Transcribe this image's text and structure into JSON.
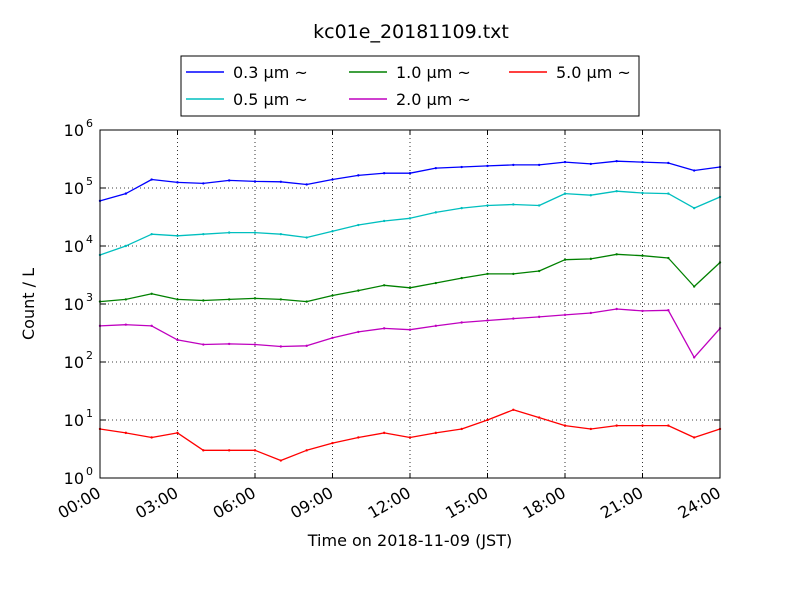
{
  "chart_data": {
    "type": "line",
    "title": "kc01e_20181109.txt",
    "xlabel": "Time on 2018-11-09 (JST)",
    "ylabel": "Count / L",
    "yscale": "log",
    "ylim": [
      1,
      1000000
    ],
    "xlim": [
      "00:00",
      "24:00"
    ],
    "grid": true,
    "legend": "top-center",
    "x_ticks": [
      "00:00",
      "03:00",
      "06:00",
      "09:00",
      "12:00",
      "15:00",
      "18:00",
      "21:00",
      "24:00"
    ],
    "y_ticks": [
      {
        "base": "10",
        "exp": "0"
      },
      {
        "base": "10",
        "exp": "1"
      },
      {
        "base": "10",
        "exp": "2"
      },
      {
        "base": "10",
        "exp": "3"
      },
      {
        "base": "10",
        "exp": "4"
      },
      {
        "base": "10",
        "exp": "5"
      },
      {
        "base": "10",
        "exp": "6"
      }
    ],
    "x": [
      "00:00",
      "01:00",
      "02:00",
      "03:00",
      "04:00",
      "05:00",
      "06:00",
      "07:00",
      "08:00",
      "09:00",
      "10:00",
      "11:00",
      "12:00",
      "13:00",
      "14:00",
      "15:00",
      "16:00",
      "17:00",
      "18:00",
      "19:00",
      "20:00",
      "21:00",
      "22:00",
      "23:00",
      "24:00"
    ],
    "series": [
      {
        "name": "0.3 μm ~",
        "color": "#0000ff",
        "values": [
          60000,
          80000,
          140000,
          125000,
          120000,
          135000,
          130000,
          128000,
          115000,
          140000,
          165000,
          180000,
          180000,
          220000,
          230000,
          240000,
          250000,
          250000,
          280000,
          260000,
          290000,
          280000,
          270000,
          200000,
          230000
        ]
      },
      {
        "name": "0.5 μm ~",
        "color": "#00bfbf",
        "values": [
          7000,
          10000,
          16000,
          15000,
          16000,
          17000,
          17000,
          16000,
          14000,
          18000,
          23000,
          27000,
          30000,
          38000,
          45000,
          50000,
          52000,
          50000,
          80000,
          75000,
          88000,
          82000,
          80000,
          45000,
          70000
        ]
      },
      {
        "name": "1.0 μm ~",
        "color": "#008000",
        "values": [
          1100,
          1200,
          1500,
          1200,
          1150,
          1200,
          1250,
          1200,
          1100,
          1400,
          1700,
          2100,
          1900,
          2300,
          2800,
          3300,
          3300,
          3700,
          5800,
          6000,
          7200,
          6800,
          6200,
          2000,
          5200
        ]
      },
      {
        "name": "2.0 μm ~",
        "color": "#bf00bf",
        "values": [
          420,
          440,
          420,
          240,
          200,
          205,
          200,
          185,
          190,
          260,
          330,
          380,
          360,
          420,
          480,
          520,
          560,
          600,
          650,
          700,
          820,
          760,
          780,
          120,
          380
        ]
      },
      {
        "name": "5.0 μm ~",
        "color": "#ff0000",
        "values": [
          7,
          6,
          5,
          6,
          3,
          3,
          3,
          2,
          3,
          4,
          5,
          6,
          5,
          6,
          7,
          10,
          15,
          11,
          8,
          7,
          8,
          8,
          8,
          5,
          7
        ]
      }
    ]
  }
}
